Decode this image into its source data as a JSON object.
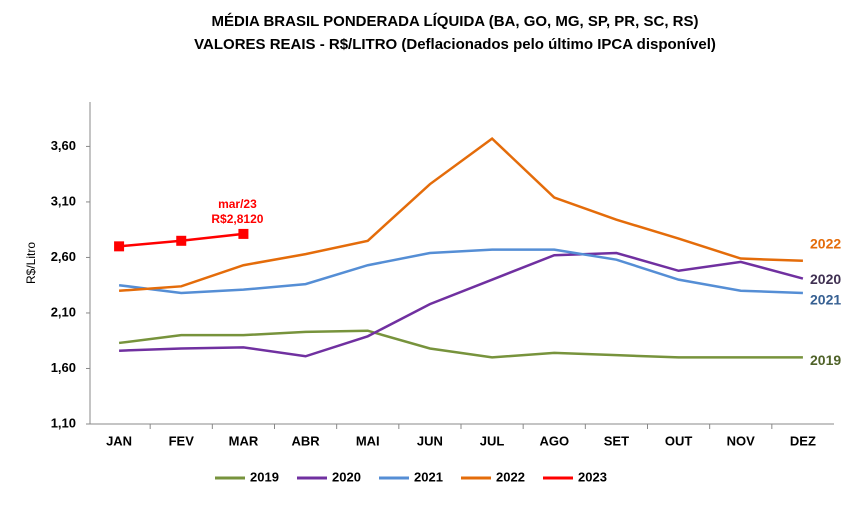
{
  "chart_data": {
    "type": "line",
    "title": [
      "MÉDIA BRASIL PONDERADA LÍQUIDA (BA, GO, MG, SP, PR, SC, RS)",
      "VALORES REAIS - R$/LITRO (Deflacionados pelo último IPCA disponível)"
    ],
    "ylabel": "R$/Litro",
    "categories": [
      "JAN",
      "FEV",
      "MAR",
      "ABR",
      "MAI",
      "JUN",
      "JUL",
      "AGO",
      "SET",
      "OUT",
      "NOV",
      "DEZ"
    ],
    "ylim": [
      1.1,
      4.0
    ],
    "yticks": [
      {
        "value": 1.1,
        "label": "1,10"
      },
      {
        "value": 1.6,
        "label": "1,60"
      },
      {
        "value": 2.1,
        "label": "2,10"
      },
      {
        "value": 2.6,
        "label": "2,60"
      },
      {
        "value": 3.1,
        "label": "3,10"
      },
      {
        "value": 3.6,
        "label": "3,60"
      }
    ],
    "grid": false,
    "legend": "bottom",
    "series": [
      {
        "name": "2019",
        "color": "#77933c",
        "label_color": "#4f6228",
        "values": [
          1.83,
          1.9,
          1.9,
          1.93,
          1.94,
          1.78,
          1.7,
          1.74,
          1.72,
          1.7,
          1.7,
          1.7
        ]
      },
      {
        "name": "2020",
        "color": "#7030a0",
        "label_color": "#403152",
        "values": [
          1.76,
          1.78,
          1.79,
          1.71,
          1.89,
          2.18,
          2.4,
          2.62,
          2.64,
          2.48,
          2.56,
          2.41
        ]
      },
      {
        "name": "2021",
        "color": "#558ed5",
        "label_color": "#376092",
        "values": [
          2.35,
          2.28,
          2.31,
          2.36,
          2.53,
          2.64,
          2.67,
          2.67,
          2.58,
          2.4,
          2.3,
          2.28
        ]
      },
      {
        "name": "2022",
        "color": "#e46c0a",
        "label_color": "#e46c0a",
        "values": [
          2.3,
          2.34,
          2.53,
          2.63,
          2.75,
          3.26,
          3.67,
          3.14,
          2.94,
          2.77,
          2.59,
          2.57
        ]
      },
      {
        "name": "2023",
        "color": "#ff0000",
        "markers": true,
        "values": [
          2.7,
          2.75,
          2.812,
          null,
          null,
          null,
          null,
          null,
          null,
          null,
          null,
          null
        ],
        "annotation": {
          "index": 2,
          "lines": [
            "mar/23",
            "R$2,8120"
          ]
        }
      }
    ]
  }
}
